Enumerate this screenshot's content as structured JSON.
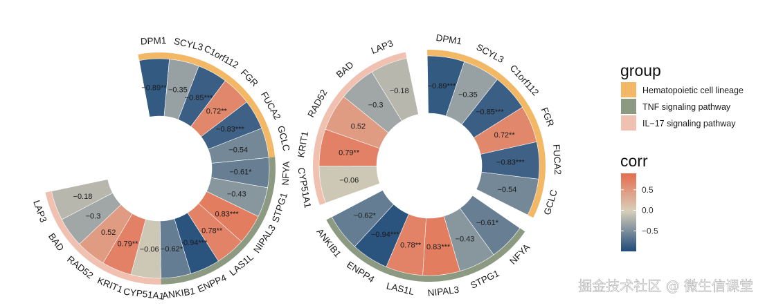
{
  "chart_data": {
    "type": "circular-heatmap",
    "colors": {
      "negative": "#1f4b7a",
      "mid": "#d8cfba",
      "positive": "#e56c4e",
      "group_hematopoietic": "#f2b865",
      "group_tnf": "#8c9a82",
      "group_il17": "#f0c0b0"
    },
    "groups": [
      "Hematopoietic cell lineage",
      "TNF signaling pathway",
      "IL−17 signaling pathway"
    ],
    "genes": [
      {
        "gene": "DPM1",
        "value": -0.89,
        "label": "−0.89***",
        "group": 0
      },
      {
        "gene": "SCYL3",
        "value": -0.35,
        "label": "−0.35",
        "group": 0
      },
      {
        "gene": "C1orf112",
        "value": -0.85,
        "label": "−0.85***",
        "group": 0
      },
      {
        "gene": "FGR",
        "value": 0.72,
        "label": "0.72**",
        "group": 0
      },
      {
        "gene": "FUCA2",
        "value": -0.83,
        "label": "−0.83***",
        "group": 0
      },
      {
        "gene": "GCLC",
        "value": -0.54,
        "label": "−0.54",
        "group": 0
      },
      {
        "gene": "NFYA",
        "value": -0.61,
        "label": "−0.61*",
        "group": 1
      },
      {
        "gene": "STPG1",
        "value": -0.43,
        "label": "−0.43",
        "group": 1
      },
      {
        "gene": "NIPAL3",
        "value": 0.83,
        "label": "0.83***",
        "group": 1
      },
      {
        "gene": "LAS1L",
        "value": 0.78,
        "label": "0.78**",
        "group": 1
      },
      {
        "gene": "ENPP4",
        "value": -0.94,
        "label": "−0.94***",
        "group": 1
      },
      {
        "gene": "ANKIB1",
        "value": -0.62,
        "label": "−0.62*",
        "group": 1
      },
      {
        "gene": "CYP51A1",
        "value": -0.06,
        "label": "−0.06",
        "group": 2
      },
      {
        "gene": "KRIT1",
        "value": 0.79,
        "label": "0.79**",
        "group": 2
      },
      {
        "gene": "RAD52",
        "value": 0.52,
        "label": "0.52",
        "group": 2
      },
      {
        "gene": "BAD",
        "value": -0.3,
        "label": "−0.3",
        "group": 2
      },
      {
        "gene": "LAP3",
        "value": -0.18,
        "label": "−0.18",
        "group": 2
      }
    ],
    "legend": {
      "group_title": "group",
      "corr_title": "corr",
      "corr_ticks": [
        0.5,
        0.0,
        -0.5
      ],
      "corr_tick_labels": [
        "0.5",
        "0.0",
        "−0.5"
      ],
      "corr_range": [
        -1,
        0.9
      ]
    }
  },
  "watermark": "掘金技术社区 @ 微生信课堂"
}
